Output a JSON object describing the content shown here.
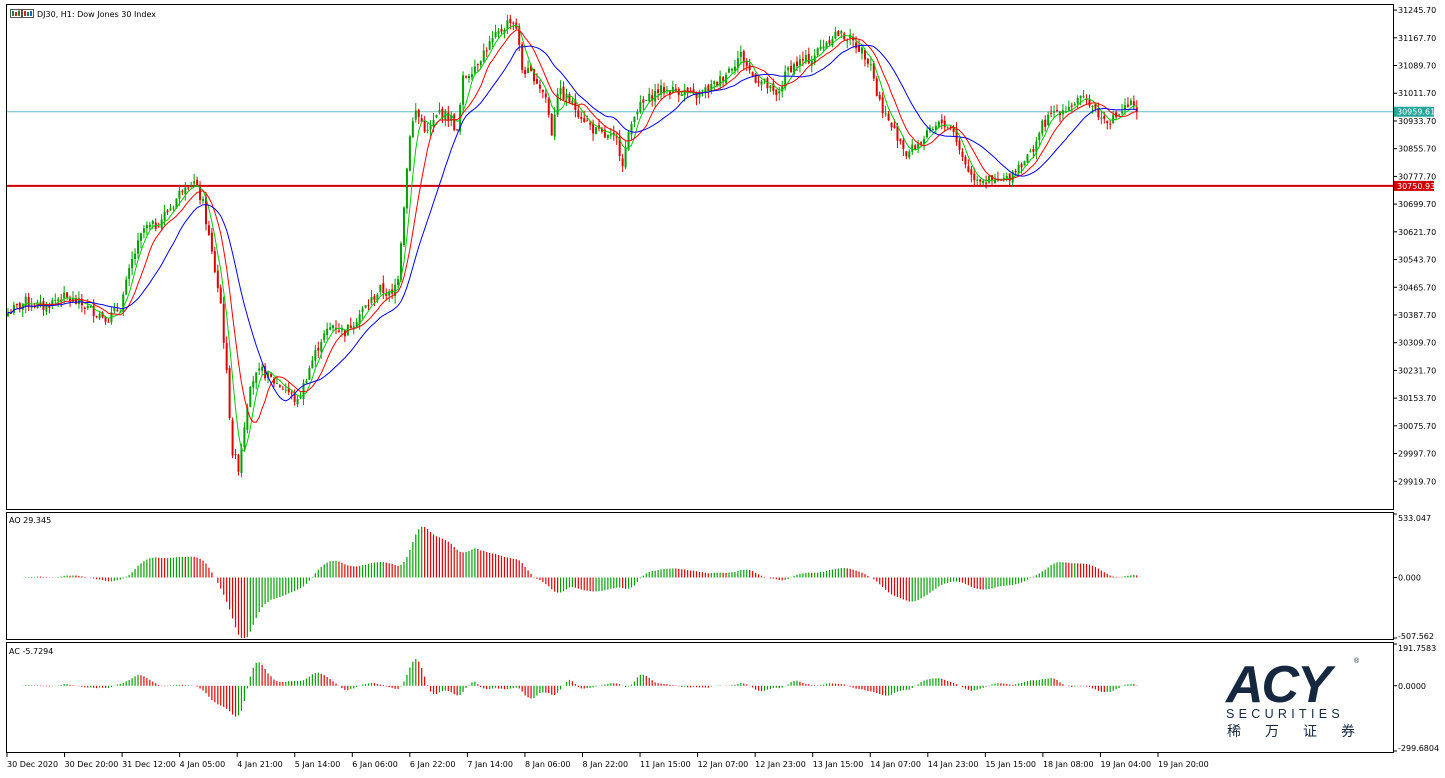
{
  "window": {
    "header": "DJ30, H1:  Dow Jones 30 Index"
  },
  "chart_data": {
    "type": "candlestick",
    "symbol": "DJ30",
    "timeframe": "H1",
    "title": "DJ30, H1:  Dow Jones 30 Index",
    "price_axis": {
      "ylim": [
        29841.7,
        31260.0
      ],
      "ticks": [
        "31245.70",
        "31167.70",
        "31089.70",
        "31011.70",
        "30933.70",
        "30855.70",
        "30777.70",
        "30699.70",
        "30621.70",
        "30543.70",
        "30465.70",
        "30387.70",
        "30309.70",
        "30231.70",
        "30153.70",
        "30075.70",
        "29997.70",
        "29919.70"
      ]
    },
    "time_axis": {
      "labels": [
        "30 Dec 2020",
        "30 Dec 20:00",
        "31 Dec 12:00",
        "4 Jan 05:00",
        "4 Jan 21:00",
        "5 Jan 14:00",
        "6 Jan 06:00",
        "6 Jan 22:00",
        "7 Jan 14:00",
        "8 Jan 06:00",
        "8 Jan 22:00",
        "11 Jan 15:00",
        "12 Jan 07:00",
        "12 Jan 23:00",
        "13 Jan 15:00",
        "14 Jan 07:00",
        "14 Jan 23:00",
        "15 Jan 15:00",
        "18 Jan 08:00",
        "19 Jan 04:00",
        "19 Jan 20:00"
      ]
    },
    "price_path": [
      [
        0,
        30395
      ],
      [
        6,
        30425
      ],
      [
        12,
        30410
      ],
      [
        18,
        30440
      ],
      [
        24,
        30420
      ],
      [
        30,
        30395
      ],
      [
        34,
        30380
      ],
      [
        38,
        30410
      ],
      [
        42,
        30540
      ],
      [
        46,
        30630
      ],
      [
        50,
        30640
      ],
      [
        56,
        30700
      ],
      [
        60,
        30760
      ],
      [
        63,
        30760
      ],
      [
        66,
        30700
      ],
      [
        69,
        30560
      ],
      [
        72,
        30420
      ],
      [
        74,
        30220
      ],
      [
        76,
        30000
      ],
      [
        78,
        29960
      ],
      [
        80,
        30080
      ],
      [
        82,
        30200
      ],
      [
        86,
        30230
      ],
      [
        90,
        30200
      ],
      [
        94,
        30180
      ],
      [
        98,
        30140
      ],
      [
        102,
        30240
      ],
      [
        106,
        30320
      ],
      [
        110,
        30360
      ],
      [
        114,
        30340
      ],
      [
        118,
        30380
      ],
      [
        122,
        30420
      ],
      [
        126,
        30460
      ],
      [
        130,
        30440
      ],
      [
        132,
        30500
      ],
      [
        134,
        30700
      ],
      [
        136,
        30900
      ],
      [
        138,
        30960
      ],
      [
        142,
        30900
      ],
      [
        146,
        30960
      ],
      [
        150,
        30940
      ],
      [
        152,
        30900
      ],
      [
        154,
        31050
      ],
      [
        158,
        31090
      ],
      [
        162,
        31140
      ],
      [
        166,
        31180
      ],
      [
        170,
        31220
      ],
      [
        172,
        31200
      ],
      [
        174,
        31080
      ],
      [
        178,
        31060
      ],
      [
        182,
        31000
      ],
      [
        184,
        30900
      ],
      [
        186,
        31020
      ],
      [
        190,
        30990
      ],
      [
        194,
        30950
      ],
      [
        198,
        30910
      ],
      [
        202,
        30890
      ],
      [
        206,
        30880
      ],
      [
        208,
        30820
      ],
      [
        212,
        30960
      ],
      [
        216,
        30990
      ],
      [
        220,
        31020
      ],
      [
        224,
        31020
      ],
      [
        228,
        31020
      ],
      [
        232,
        31000
      ],
      [
        236,
        31020
      ],
      [
        240,
        31040
      ],
      [
        244,
        31080
      ],
      [
        248,
        31120
      ],
      [
        252,
        31060
      ],
      [
        256,
        31040
      ],
      [
        260,
        31000
      ],
      [
        264,
        31080
      ],
      [
        268,
        31100
      ],
      [
        272,
        31110
      ],
      [
        276,
        31150
      ],
      [
        280,
        31180
      ],
      [
        284,
        31170
      ],
      [
        288,
        31140
      ],
      [
        292,
        31100
      ],
      [
        294,
        31010
      ],
      [
        298,
        30930
      ],
      [
        302,
        30880
      ],
      [
        304,
        30840
      ],
      [
        308,
        30870
      ],
      [
        312,
        30900
      ],
      [
        316,
        30930
      ],
      [
        320,
        30910
      ],
      [
        322,
        30850
      ],
      [
        326,
        30780
      ],
      [
        330,
        30770
      ],
      [
        334,
        30760
      ],
      [
        338,
        30770
      ],
      [
        342,
        30810
      ],
      [
        346,
        30840
      ],
      [
        350,
        30920
      ],
      [
        354,
        30960
      ],
      [
        358,
        30970
      ],
      [
        362,
        30990
      ],
      [
        366,
        30990
      ],
      [
        370,
        30940
      ],
      [
        374,
        30940
      ],
      [
        378,
        30970
      ],
      [
        380,
        30980
      ],
      [
        382,
        30950
      ]
    ],
    "moving_averages": [
      {
        "name": "",
        "color": "#00cc00"
      },
      {
        "name": "",
        "color": "#ff0000"
      },
      {
        "name": "",
        "color": "#0000ff"
      }
    ],
    "current_price": {
      "label": "30959.61",
      "value": 30959.61,
      "line_color": "#6fb9c9",
      "box_color": "#26a69a"
    },
    "level_line": {
      "label": "30750.93",
      "value": 30750.93,
      "color": "#d00000"
    },
    "indicators": [
      {
        "name": "AO",
        "label": "AO 29.345",
        "ticks": [
          "533.047",
          "0.000",
          "-507.562"
        ],
        "ylim": [
          -507.562,
          533.047
        ],
        "kind": "ao"
      },
      {
        "name": "AC",
        "label": "AC -5.7294",
        "ticks": [
          "191.7583",
          "0.0000",
          "-299.6804"
        ],
        "ylim": [
          -299.6804,
          191.7583
        ],
        "kind": "ac"
      }
    ],
    "up_color": "#00a000",
    "down_color": "#e00000"
  },
  "watermark": {
    "brand": "ACY",
    "sub": "SECURITIES",
    "chinese": [
      "稀",
      "万",
      "证",
      "券"
    ],
    "reg": "®"
  }
}
